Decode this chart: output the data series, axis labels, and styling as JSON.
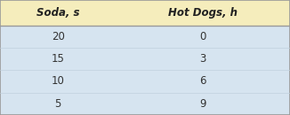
{
  "col_headers": [
    "Soda, s",
    "Hot Dogs, h"
  ],
  "rows": [
    [
      "20",
      "0"
    ],
    [
      "15",
      "3"
    ],
    [
      "10",
      "6"
    ],
    [
      "5",
      "9"
    ]
  ],
  "header_bg": "#f5edbc",
  "row_bg": "#d6e4f0",
  "row_sep_color": "#c0d0de",
  "header_text_color": "#222222",
  "cell_text_color": "#333333",
  "border_color": "#999999",
  "header_fontsize": 8.5,
  "cell_fontsize": 8.5,
  "fig_width": 3.26,
  "fig_height": 1.3,
  "dpi": 100
}
